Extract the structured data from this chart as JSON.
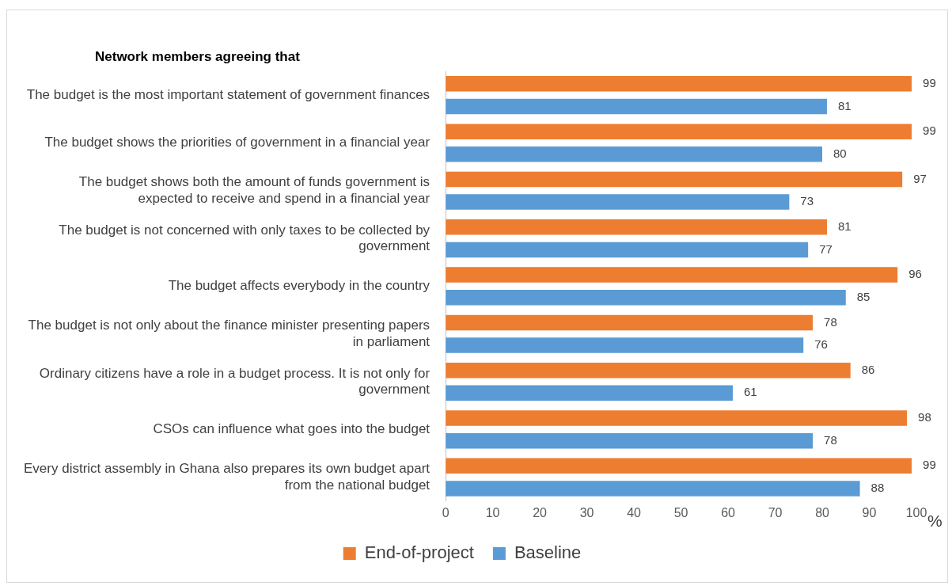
{
  "chart_data": {
    "type": "bar",
    "orientation": "horizontal",
    "title": "Network members agreeing that",
    "xlabel": "%",
    "categories": [
      "The budget is the most important statement of government finances",
      "The budget shows the priorities of government in a financial year",
      "The budget shows both the amount of funds government is expected to receive and spend in a financial year",
      "The budget is not concerned with only taxes to be collected by government",
      "The budget affects everybody in the country",
      "The budget is not only about the finance minister presenting papers in parliament",
      "Ordinary citizens have a role in a budget process. It is not only for government",
      "CSOs can influence what goes into the budget",
      "Every district assembly in Ghana also prepares its own budget apart from the national budget"
    ],
    "series": [
      {
        "name": "End-of-project",
        "color": "#ed7d31",
        "values": [
          99,
          99,
          97,
          81,
          96,
          78,
          86,
          98,
          99
        ]
      },
      {
        "name": "Baseline",
        "color": "#5b9bd5",
        "values": [
          81,
          80,
          73,
          77,
          85,
          76,
          61,
          78,
          88
        ]
      }
    ],
    "xlim": [
      0,
      100
    ],
    "xticks": [
      0,
      10,
      20,
      30,
      40,
      50,
      60,
      70,
      80,
      90,
      100
    ],
    "data_labels": true,
    "grid": false,
    "legend": "bottom"
  }
}
